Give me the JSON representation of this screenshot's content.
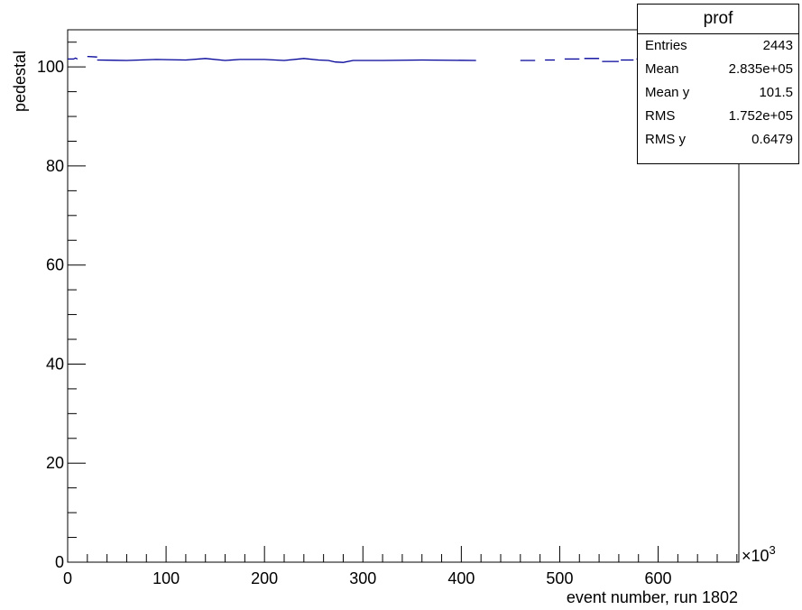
{
  "chart_data": {
    "type": "line",
    "title": "",
    "xlabel": "event number, run 1802",
    "ylabel": "pedestal",
    "x_multiplier": "×10",
    "x_multiplier_exp": "3",
    "xlim": [
      0,
      682
    ],
    "ylim": [
      0,
      107.5
    ],
    "x_ticks": [
      0,
      100,
      200,
      300,
      400,
      500,
      600
    ],
    "y_ticks": [
      0,
      20,
      40,
      60,
      80,
      100
    ],
    "line_color": "#000099",
    "series": [
      {
        "segments": [
          [
            [
              0,
              101.6
            ],
            [
              6,
              101.6
            ],
            [
              8,
              101.8
            ],
            [
              10,
              101.6
            ]
          ],
          [
            [
              20,
              102.1
            ],
            [
              30,
              102.0
            ]
          ],
          [
            [
              30,
              101.4
            ],
            [
              60,
              101.3
            ],
            [
              90,
              101.5
            ],
            [
              120,
              101.4
            ],
            [
              140,
              101.7
            ],
            [
              160,
              101.3
            ],
            [
              175,
              101.5
            ],
            [
              200,
              101.5
            ],
            [
              220,
              101.3
            ],
            [
              240,
              101.7
            ],
            [
              255,
              101.4
            ],
            [
              265,
              101.3
            ],
            [
              272,
              101.0
            ],
            [
              280,
              100.9
            ],
            [
              290,
              101.3
            ],
            [
              320,
              101.3
            ],
            [
              360,
              101.4
            ],
            [
              415,
              101.3
            ]
          ],
          [
            [
              460,
              101.3
            ],
            [
              475,
              101.3
            ]
          ],
          [
            [
              485,
              101.4
            ],
            [
              495,
              101.4
            ]
          ],
          [
            [
              505,
              101.6
            ],
            [
              520,
              101.6
            ]
          ],
          [
            [
              525,
              101.7
            ],
            [
              540,
              101.7
            ]
          ],
          [
            [
              543,
              101.1
            ],
            [
              560,
              101.1
            ]
          ],
          [
            [
              562,
              101.4
            ],
            [
              575,
              101.4
            ]
          ],
          [
            [
              578,
              101.6
            ],
            [
              592,
              101.6
            ]
          ],
          [
            [
              594,
              101.9
            ],
            [
              606,
              101.9
            ]
          ]
        ]
      }
    ],
    "stats": {
      "name": "prof",
      "rows": [
        {
          "label": "Entries",
          "value": "2443"
        },
        {
          "label": "Mean",
          "value": "2.835e+05"
        },
        {
          "label": "Mean y",
          "value": "101.5"
        },
        {
          "label": "RMS",
          "value": "1.752e+05"
        },
        {
          "label": "RMS y",
          "value": "0.6479"
        }
      ]
    }
  }
}
